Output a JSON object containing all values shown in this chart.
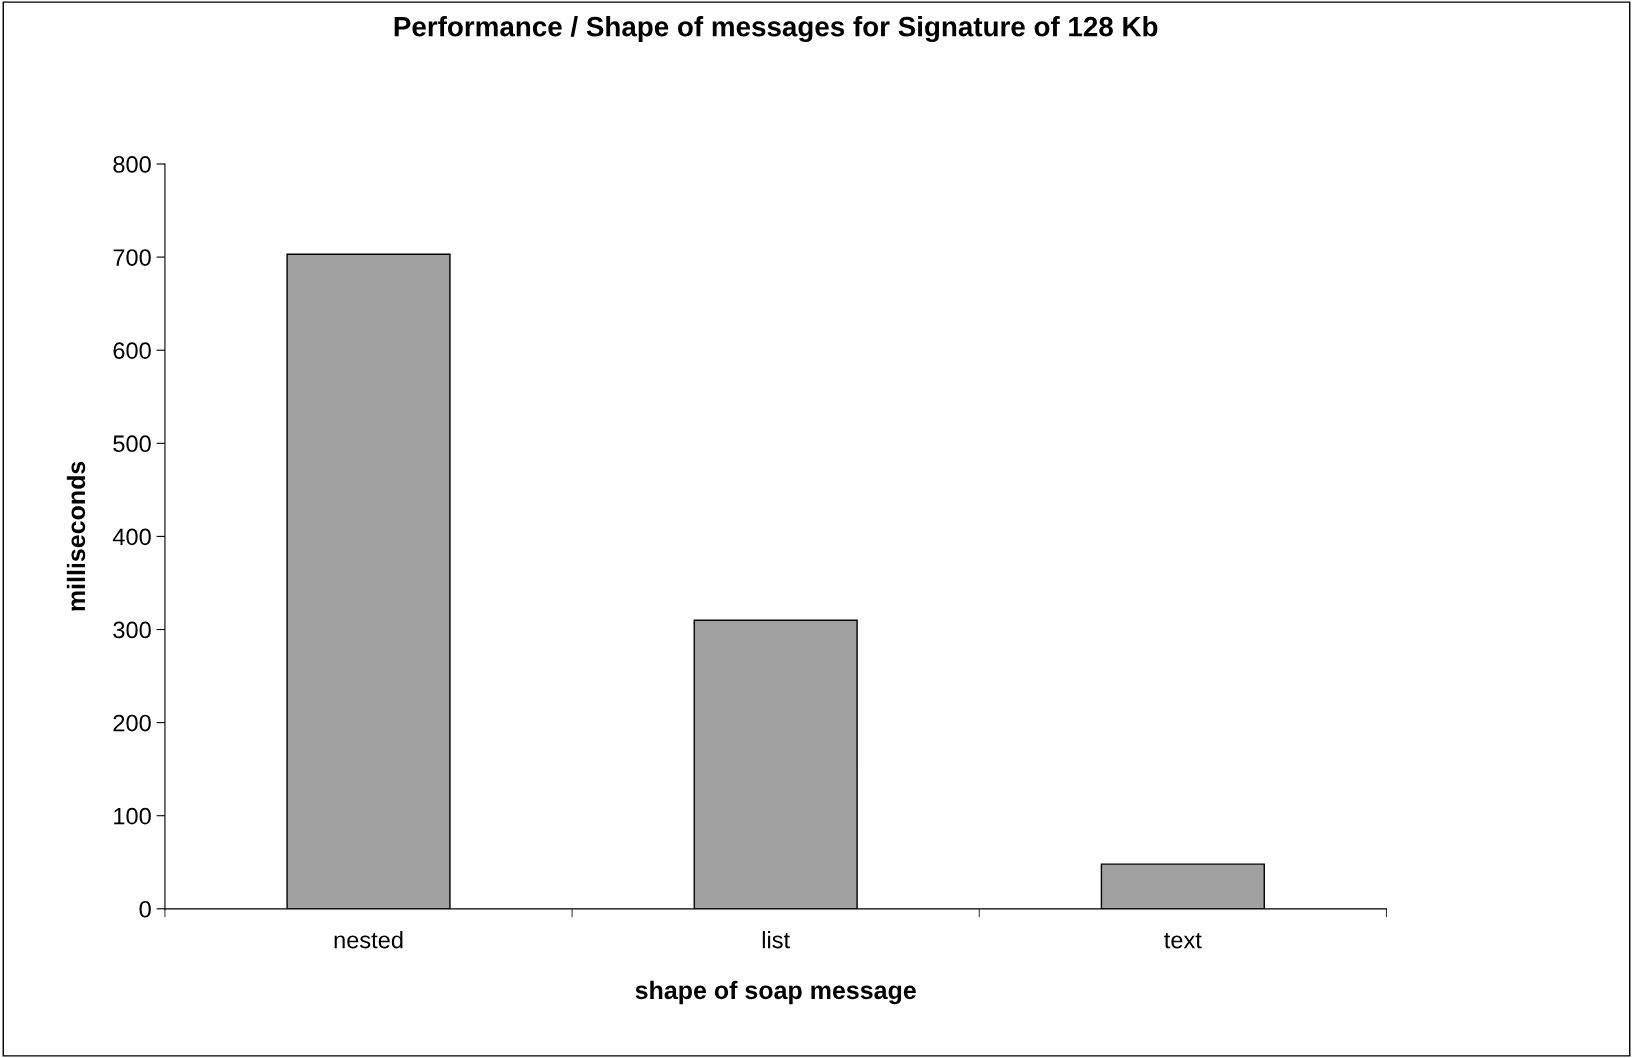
{
  "chart_data": {
    "type": "bar",
    "title": "Performance / Shape of messages for Signature of 128 Kb",
    "xlabel": "shape of soap message",
    "ylabel": "milliseconds",
    "categories": [
      "nested",
      "list",
      "text"
    ],
    "series": [
      {
        "color": "#a0a0a0",
        "values": [
          703,
          310,
          48
        ]
      }
    ],
    "ylim": [
      0,
      800
    ],
    "yticks": [
      0,
      100,
      200,
      300,
      400,
      500,
      600,
      700,
      800
    ],
    "grid": false
  }
}
